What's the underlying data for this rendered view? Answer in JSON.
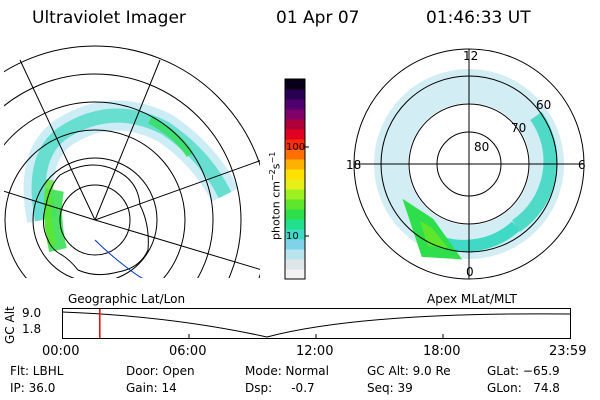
{
  "header": {
    "instrument": "Ultraviolet Imager",
    "date": "01 Apr 07",
    "time": "01:46:33 UT"
  },
  "colorbar": {
    "unit_label": "photon cm",
    "unit_exp1": "−2",
    "unit_s": "s",
    "unit_exp2": "−1",
    "ticks": [
      "100",
      "10"
    ],
    "colors": [
      "#f2f2f2",
      "#dfe6ea",
      "#b9e4ee",
      "#7fd3e8",
      "#3fd9c6",
      "#21e08c",
      "#2ede4a",
      "#5ee62c",
      "#9ef020",
      "#e6f018",
      "#ffe000",
      "#ffb000",
      "#ff7000",
      "#ff2a00",
      "#e00020",
      "#b0003a",
      "#80006a",
      "#50006e",
      "#280050",
      "#080018"
    ]
  },
  "polar_plot": {
    "lat_labels": [
      "80",
      "70",
      "60"
    ],
    "mlt_labels": [
      "12",
      "18",
      "6",
      "0"
    ]
  },
  "timeline": {
    "left_label": "Geographic Lat/Lon",
    "right_label": "Apex MLat/MLT",
    "ylabel": "GC Alt",
    "y_ticks": [
      "9.0",
      "1.8"
    ],
    "x_ticks": [
      "00:00",
      "06:00",
      "12:00",
      "18:00",
      "23:59"
    ],
    "current_fraction": 0.0735,
    "marker_color": "#ff0000"
  },
  "status": {
    "flt": "Flt: LBHL",
    "ip": "IP: 36.0",
    "door": "Door: Open",
    "gain": "Gain: 14",
    "mode": "Mode: Normal",
    "dsp": "Dsp:     -0.7",
    "gc_alt": "GC Alt: 9.0 Re",
    "seq": "Seq: 39",
    "glat": "GLat: −65.9",
    "glon": "GLon:   74.8"
  }
}
